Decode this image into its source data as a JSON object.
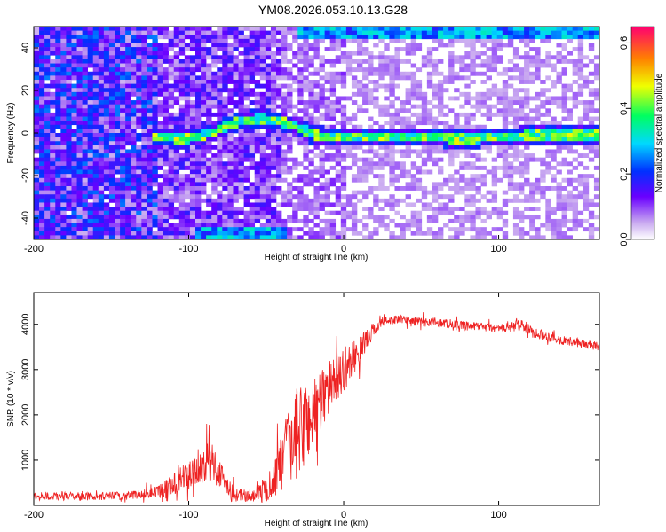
{
  "title": "YM08.2026.053.10.13.G28",
  "colors": {
    "snr_line": "#ee2222",
    "axis": "#000000",
    "background": "#ffffff"
  },
  "chart_data": [
    {
      "type": "heatmap",
      "xlabel": "Height of straight line (km)",
      "ylabel": "Frequency (Hz)",
      "xlim": [
        -200,
        165
      ],
      "ylim": [
        -50,
        50
      ],
      "xticks": [
        "-200",
        "-100",
        "0",
        "100"
      ],
      "xtick_values": [
        -200,
        -100,
        0,
        100
      ],
      "yticks": [
        "-40",
        "-20",
        "0",
        "20",
        "40"
      ],
      "ytick_values": [
        -40,
        -20,
        0,
        20,
        40
      ],
      "colorbar": {
        "label": "Normalized spectral amplitude",
        "range": [
          0,
          0.65
        ],
        "ticks": [
          "0.0",
          "0.2",
          "0.4",
          "0.6"
        ],
        "tick_values": [
          0,
          0.2,
          0.4,
          0.6
        ]
      },
      "features": [
        {
          "name": "carrier-band",
          "frequency_hz": [
            [
              -125,
              -2
            ],
            [
              -100,
              -3
            ],
            [
              -85,
              0
            ],
            [
              -70,
              5
            ],
            [
              -55,
              7
            ],
            [
              -45,
              6
            ],
            [
              -30,
              3
            ],
            [
              -20,
              -1
            ],
            [
              0,
              -2
            ],
            [
              50,
              -2
            ],
            [
              80,
              -3
            ],
            [
              120,
              -1
            ],
            [
              165,
              -1
            ]
          ],
          "peak_amplitude": 0.55
        },
        {
          "name": "alias-band-bottom",
          "x_range": [
            -95,
            -35
          ],
          "frequency_hz": -48,
          "peak_amplitude": 0.35
        },
        {
          "name": "alias-band-top",
          "x_range": [
            -30,
            165
          ],
          "frequency_hz": 48,
          "peak_amplitude": 0.45
        }
      ]
    },
    {
      "type": "line",
      "xlabel": "Height of straight line (km)",
      "ylabel": "SNR (10 * v/v)",
      "xlim": [
        -200,
        165
      ],
      "ylim": [
        0,
        4700
      ],
      "xticks": [
        "-200",
        "-100",
        "0",
        "100"
      ],
      "xtick_values": [
        -200,
        -100,
        0,
        100
      ],
      "yticks": [
        "1000",
        "2000",
        "3000",
        "4000"
      ],
      "ytick_values": [
        1000,
        2000,
        3000,
        4000
      ],
      "series": [
        {
          "name": "SNR",
          "x": [
            -200,
            -180,
            -160,
            -140,
            -130,
            -120,
            -110,
            -100,
            -90,
            -85,
            -80,
            -75,
            -70,
            -60,
            -50,
            -45,
            -40,
            -35,
            -30,
            -25,
            -20,
            -15,
            -10,
            -5,
            0,
            5,
            10,
            15,
            20,
            25,
            30,
            40,
            50,
            60,
            70,
            80,
            90,
            100,
            110,
            115,
            120,
            130,
            140,
            150,
            165
          ],
          "y": [
            200,
            200,
            200,
            220,
            250,
            300,
            450,
            650,
            900,
            1000,
            700,
            450,
            250,
            200,
            350,
            600,
            900,
            1300,
            1600,
            1800,
            2000,
            2300,
            2600,
            2800,
            3000,
            3200,
            3400,
            3700,
            3900,
            4050,
            4100,
            4100,
            4050,
            4050,
            4000,
            3950,
            3950,
            3900,
            3950,
            4000,
            3850,
            3750,
            3650,
            3600,
            3500
          ],
          "noise_amplitude": [
            90,
            90,
            90,
            90,
            100,
            150,
            250,
            350,
            400,
            450,
            350,
            250,
            150,
            120,
            300,
            450,
            700,
            900,
            1000,
            1000,
            900,
            800,
            600,
            500,
            500,
            400,
            300,
            250,
            150,
            120,
            100,
            100,
            100,
            100,
            100,
            100,
            100,
            100,
            120,
            150,
            130,
            110,
            100,
            100,
            100
          ]
        }
      ]
    }
  ]
}
